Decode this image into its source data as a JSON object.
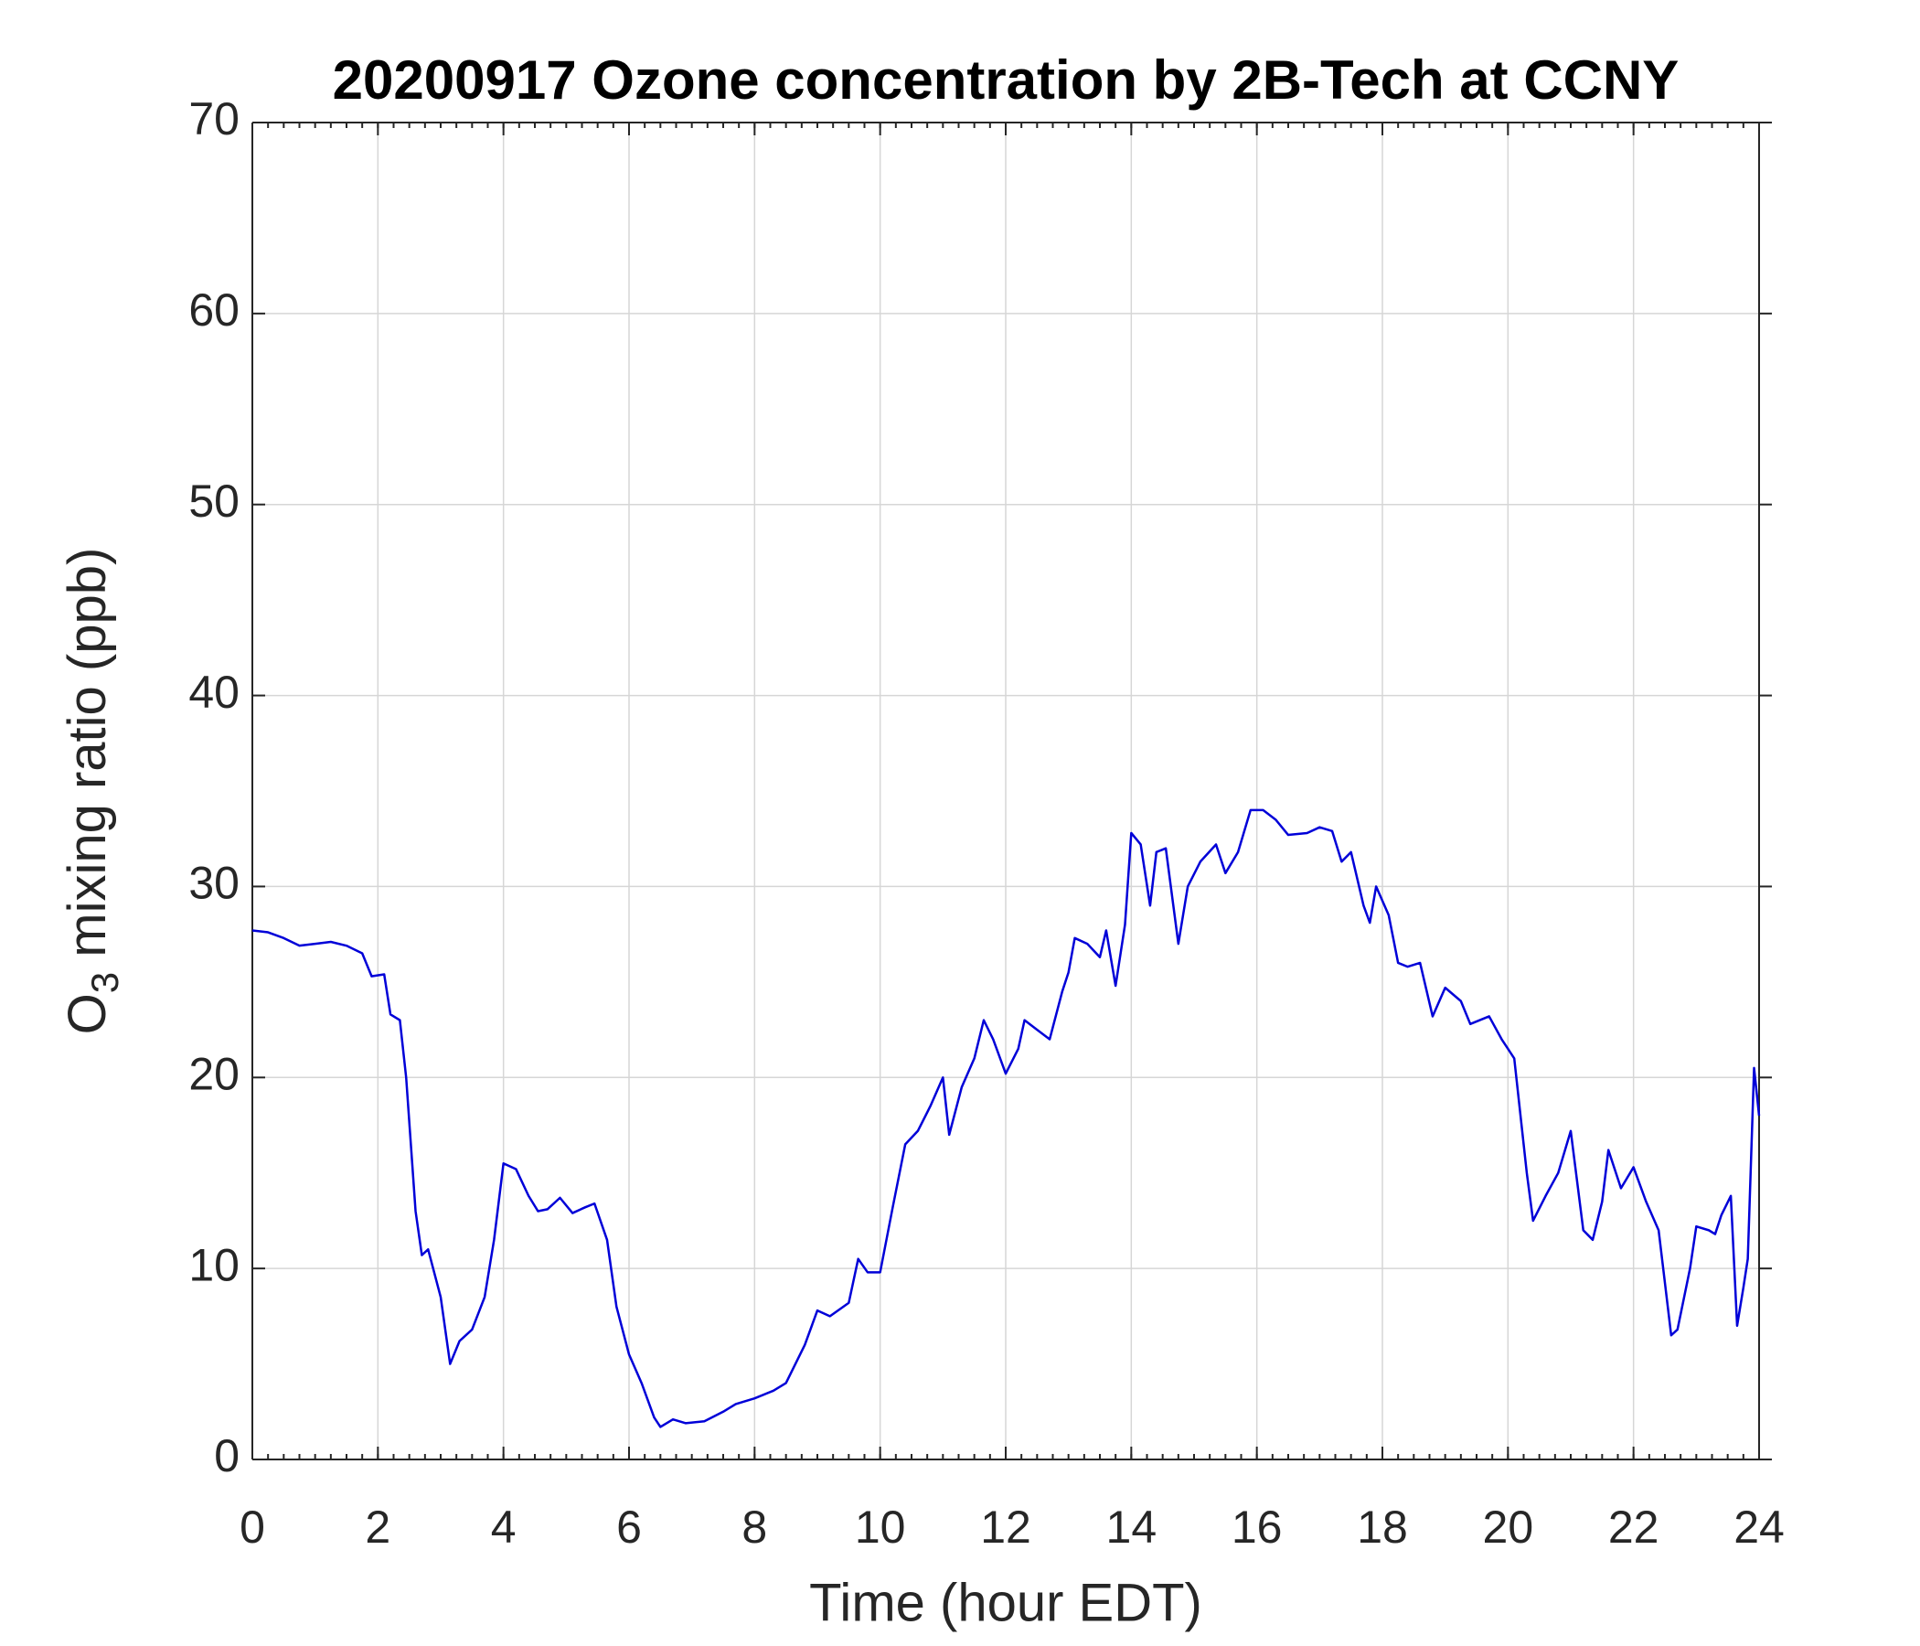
{
  "chart_data": {
    "type": "line",
    "title": "20200917 Ozone concentration by 2B-Tech at CCNY",
    "x_label": "Time (hour EDT)",
    "y_label": {
      "base": "O",
      "subscript": "3",
      "rest": " mixing ratio (ppb)"
    },
    "xlim": [
      0,
      24
    ],
    "xticks": [
      0,
      2,
      4,
      6,
      8,
      10,
      12,
      14,
      16,
      18,
      20,
      22,
      24
    ],
    "ylim": [
      0,
      70
    ],
    "yticks": [
      0,
      10,
      20,
      30,
      40,
      50,
      60,
      70
    ],
    "grid": true,
    "series": [
      {
        "color": "#0000d8",
        "x": [
          0,
          0.25,
          0.5,
          0.75,
          1.0,
          1.25,
          1.5,
          1.75,
          1.9,
          2.1,
          2.2,
          2.35,
          2.45,
          2.6,
          2.7,
          2.8,
          3.0,
          3.15,
          3.3,
          3.5,
          3.7,
          3.85,
          4.0,
          4.2,
          4.4,
          4.55,
          4.7,
          4.9,
          5.1,
          5.3,
          5.45,
          5.65,
          5.8,
          6.0,
          6.2,
          6.4,
          6.5,
          6.7,
          6.9,
          7.2,
          7.5,
          7.7,
          8.0,
          8.3,
          8.5,
          8.8,
          9.0,
          9.2,
          9.5,
          9.65,
          9.8,
          10.0,
          10.2,
          10.4,
          10.6,
          10.8,
          11.0,
          11.1,
          11.3,
          11.5,
          11.65,
          11.8,
          12.0,
          12.2,
          12.3,
          12.5,
          12.7,
          12.9,
          13.0,
          13.1,
          13.3,
          13.5,
          13.6,
          13.75,
          13.9,
          14.0,
          14.15,
          14.3,
          14.4,
          14.55,
          14.75,
          14.9,
          15.1,
          15.35,
          15.5,
          15.7,
          15.9,
          16.1,
          16.3,
          16.5,
          16.8,
          17.0,
          17.2,
          17.35,
          17.5,
          17.7,
          17.8,
          17.9,
          18.1,
          18.25,
          18.4,
          18.6,
          18.8,
          19.0,
          19.25,
          19.4,
          19.7,
          19.9,
          20.1,
          20.3,
          20.4,
          20.6,
          20.8,
          21.0,
          21.2,
          21.35,
          21.5,
          21.6,
          21.8,
          22.0,
          22.2,
          22.4,
          22.6,
          22.7,
          22.9,
          23.0,
          23.2,
          23.3,
          23.4,
          23.55,
          23.65,
          23.75,
          23.82,
          23.92,
          24.0
        ],
        "values": [
          27.7,
          27.6,
          27.3,
          26.9,
          27.0,
          27.1,
          26.9,
          26.5,
          25.3,
          25.4,
          23.3,
          23.0,
          20.0,
          13.0,
          10.7,
          11.0,
          8.5,
          5.0,
          6.2,
          6.8,
          8.5,
          11.5,
          15.5,
          15.2,
          13.8,
          13.0,
          13.1,
          13.7,
          12.9,
          13.2,
          13.4,
          11.5,
          8.0,
          5.5,
          4.0,
          2.2,
          1.7,
          2.1,
          1.9,
          2.0,
          2.5,
          2.9,
          3.2,
          3.6,
          4.0,
          6.0,
          7.8,
          7.5,
          8.2,
          10.5,
          9.8,
          9.8,
          13.2,
          16.5,
          17.2,
          18.5,
          20.0,
          17.0,
          19.5,
          21.0,
          23.0,
          22.0,
          20.2,
          21.5,
          23.0,
          22.5,
          22.0,
          24.5,
          25.5,
          27.3,
          27.0,
          26.3,
          27.7,
          24.8,
          28.0,
          32.8,
          32.2,
          29.0,
          31.8,
          32.0,
          27.0,
          30.0,
          31.3,
          32.2,
          30.7,
          31.8,
          34.0,
          34.0,
          33.5,
          32.7,
          32.8,
          33.1,
          32.9,
          31.3,
          31.8,
          29.0,
          28.1,
          30.0,
          28.5,
          26.0,
          25.8,
          26.0,
          23.2,
          24.7,
          24.0,
          22.8,
          23.2,
          22.0,
          21.0,
          15.0,
          12.5,
          13.8,
          15.0,
          17.2,
          12.0,
          11.5,
          13.5,
          16.2,
          14.2,
          15.3,
          13.5,
          12.0,
          6.5,
          6.8,
          10.0,
          12.2,
          12.0,
          11.8,
          12.8,
          13.8,
          7.0,
          9.0,
          10.5,
          20.5,
          18.0
        ]
      }
    ]
  }
}
